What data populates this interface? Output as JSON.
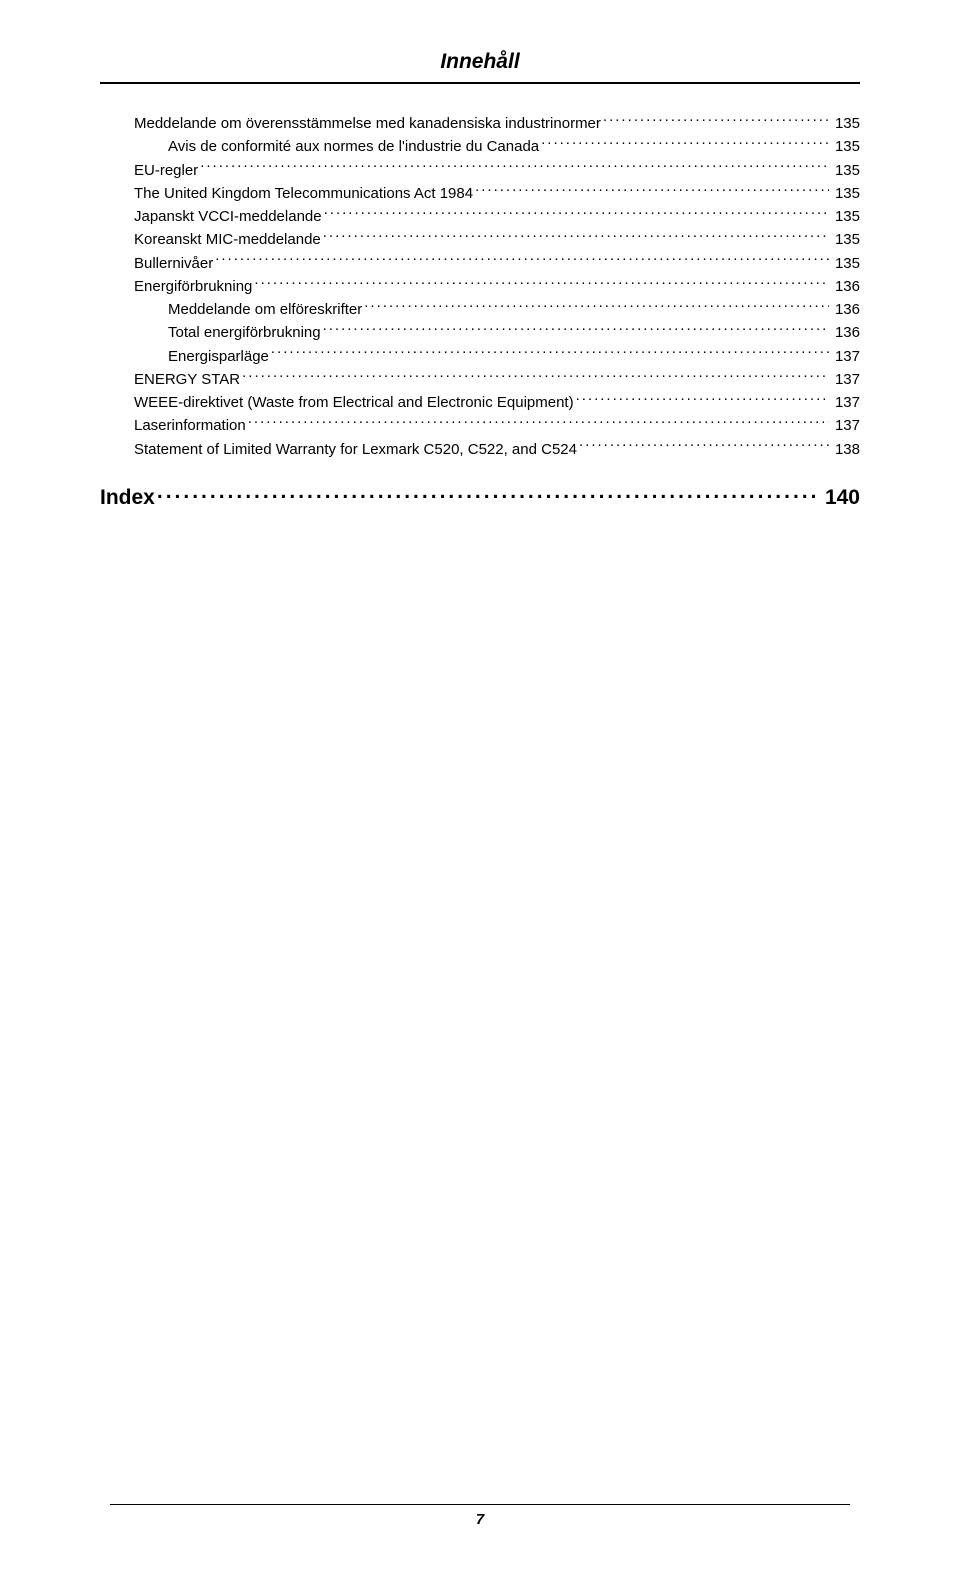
{
  "header": {
    "title": "Innehåll"
  },
  "toc": [
    {
      "indent": 1,
      "label": "Meddelande om överensstämmelse med kanadensiska industrinormer",
      "page": "135"
    },
    {
      "indent": 2,
      "label": "Avis de conformité aux normes de l'industrie du Canada",
      "page": "135"
    },
    {
      "indent": 1,
      "label": "EU-regler",
      "page": "135"
    },
    {
      "indent": 1,
      "label": "The United Kingdom Telecommunications Act 1984",
      "page": "135"
    },
    {
      "indent": 1,
      "label": "Japanskt VCCI-meddelande",
      "page": "135"
    },
    {
      "indent": 1,
      "label": "Koreanskt MIC-meddelande",
      "page": "135"
    },
    {
      "indent": 1,
      "label": "Bullernivåer",
      "page": "135"
    },
    {
      "indent": 1,
      "label": "Energiförbrukning",
      "page": "136"
    },
    {
      "indent": 2,
      "label": "Meddelande om elföreskrifter",
      "page": "136"
    },
    {
      "indent": 2,
      "label": "Total energiförbrukning",
      "page": "136"
    },
    {
      "indent": 2,
      "label": "Energisparläge",
      "page": "137"
    },
    {
      "indent": 1,
      "label": "ENERGY STAR",
      "page": "137"
    },
    {
      "indent": 1,
      "label": "WEEE-direktivet (Waste from Electrical and Electronic Equipment)",
      "page": "137"
    },
    {
      "indent": 1,
      "label": "Laserinformation",
      "page": "137"
    },
    {
      "indent": 1,
      "label": "Statement of Limited Warranty for Lexmark C520, C522, and C524",
      "page": "138"
    }
  ],
  "index": {
    "label": "Index",
    "page": "140"
  },
  "footer": {
    "page_number": "7"
  }
}
